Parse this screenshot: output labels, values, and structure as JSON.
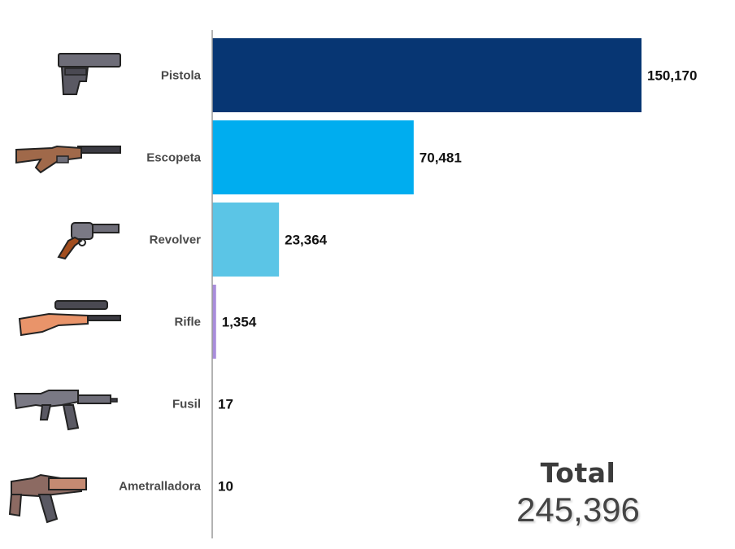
{
  "chart_data": {
    "type": "bar",
    "orientation": "horizontal",
    "categories": [
      "Pistola",
      "Escopeta",
      "Revolver",
      "Rifle",
      "Fusil",
      "Ametralladora"
    ],
    "values": [
      150170,
      70481,
      23364,
      1354,
      17,
      10
    ],
    "value_labels": [
      "150,170",
      "70,481",
      "23,364",
      "1,354",
      "17",
      "10"
    ],
    "colors": [
      "#073673",
      "#00adef",
      "#5bc5e6",
      "#a98ddb",
      "#a98ddb",
      "#a98ddb"
    ],
    "icons": [
      "pistol-icon",
      "shotgun-icon",
      "revolver-icon",
      "rifle-icon",
      "assault-rifle-icon",
      "machine-gun-icon"
    ],
    "xlim": [
      0,
      150170
    ],
    "grid": false,
    "legend": "none"
  },
  "total": {
    "label": "Total",
    "value": "245,396"
  }
}
